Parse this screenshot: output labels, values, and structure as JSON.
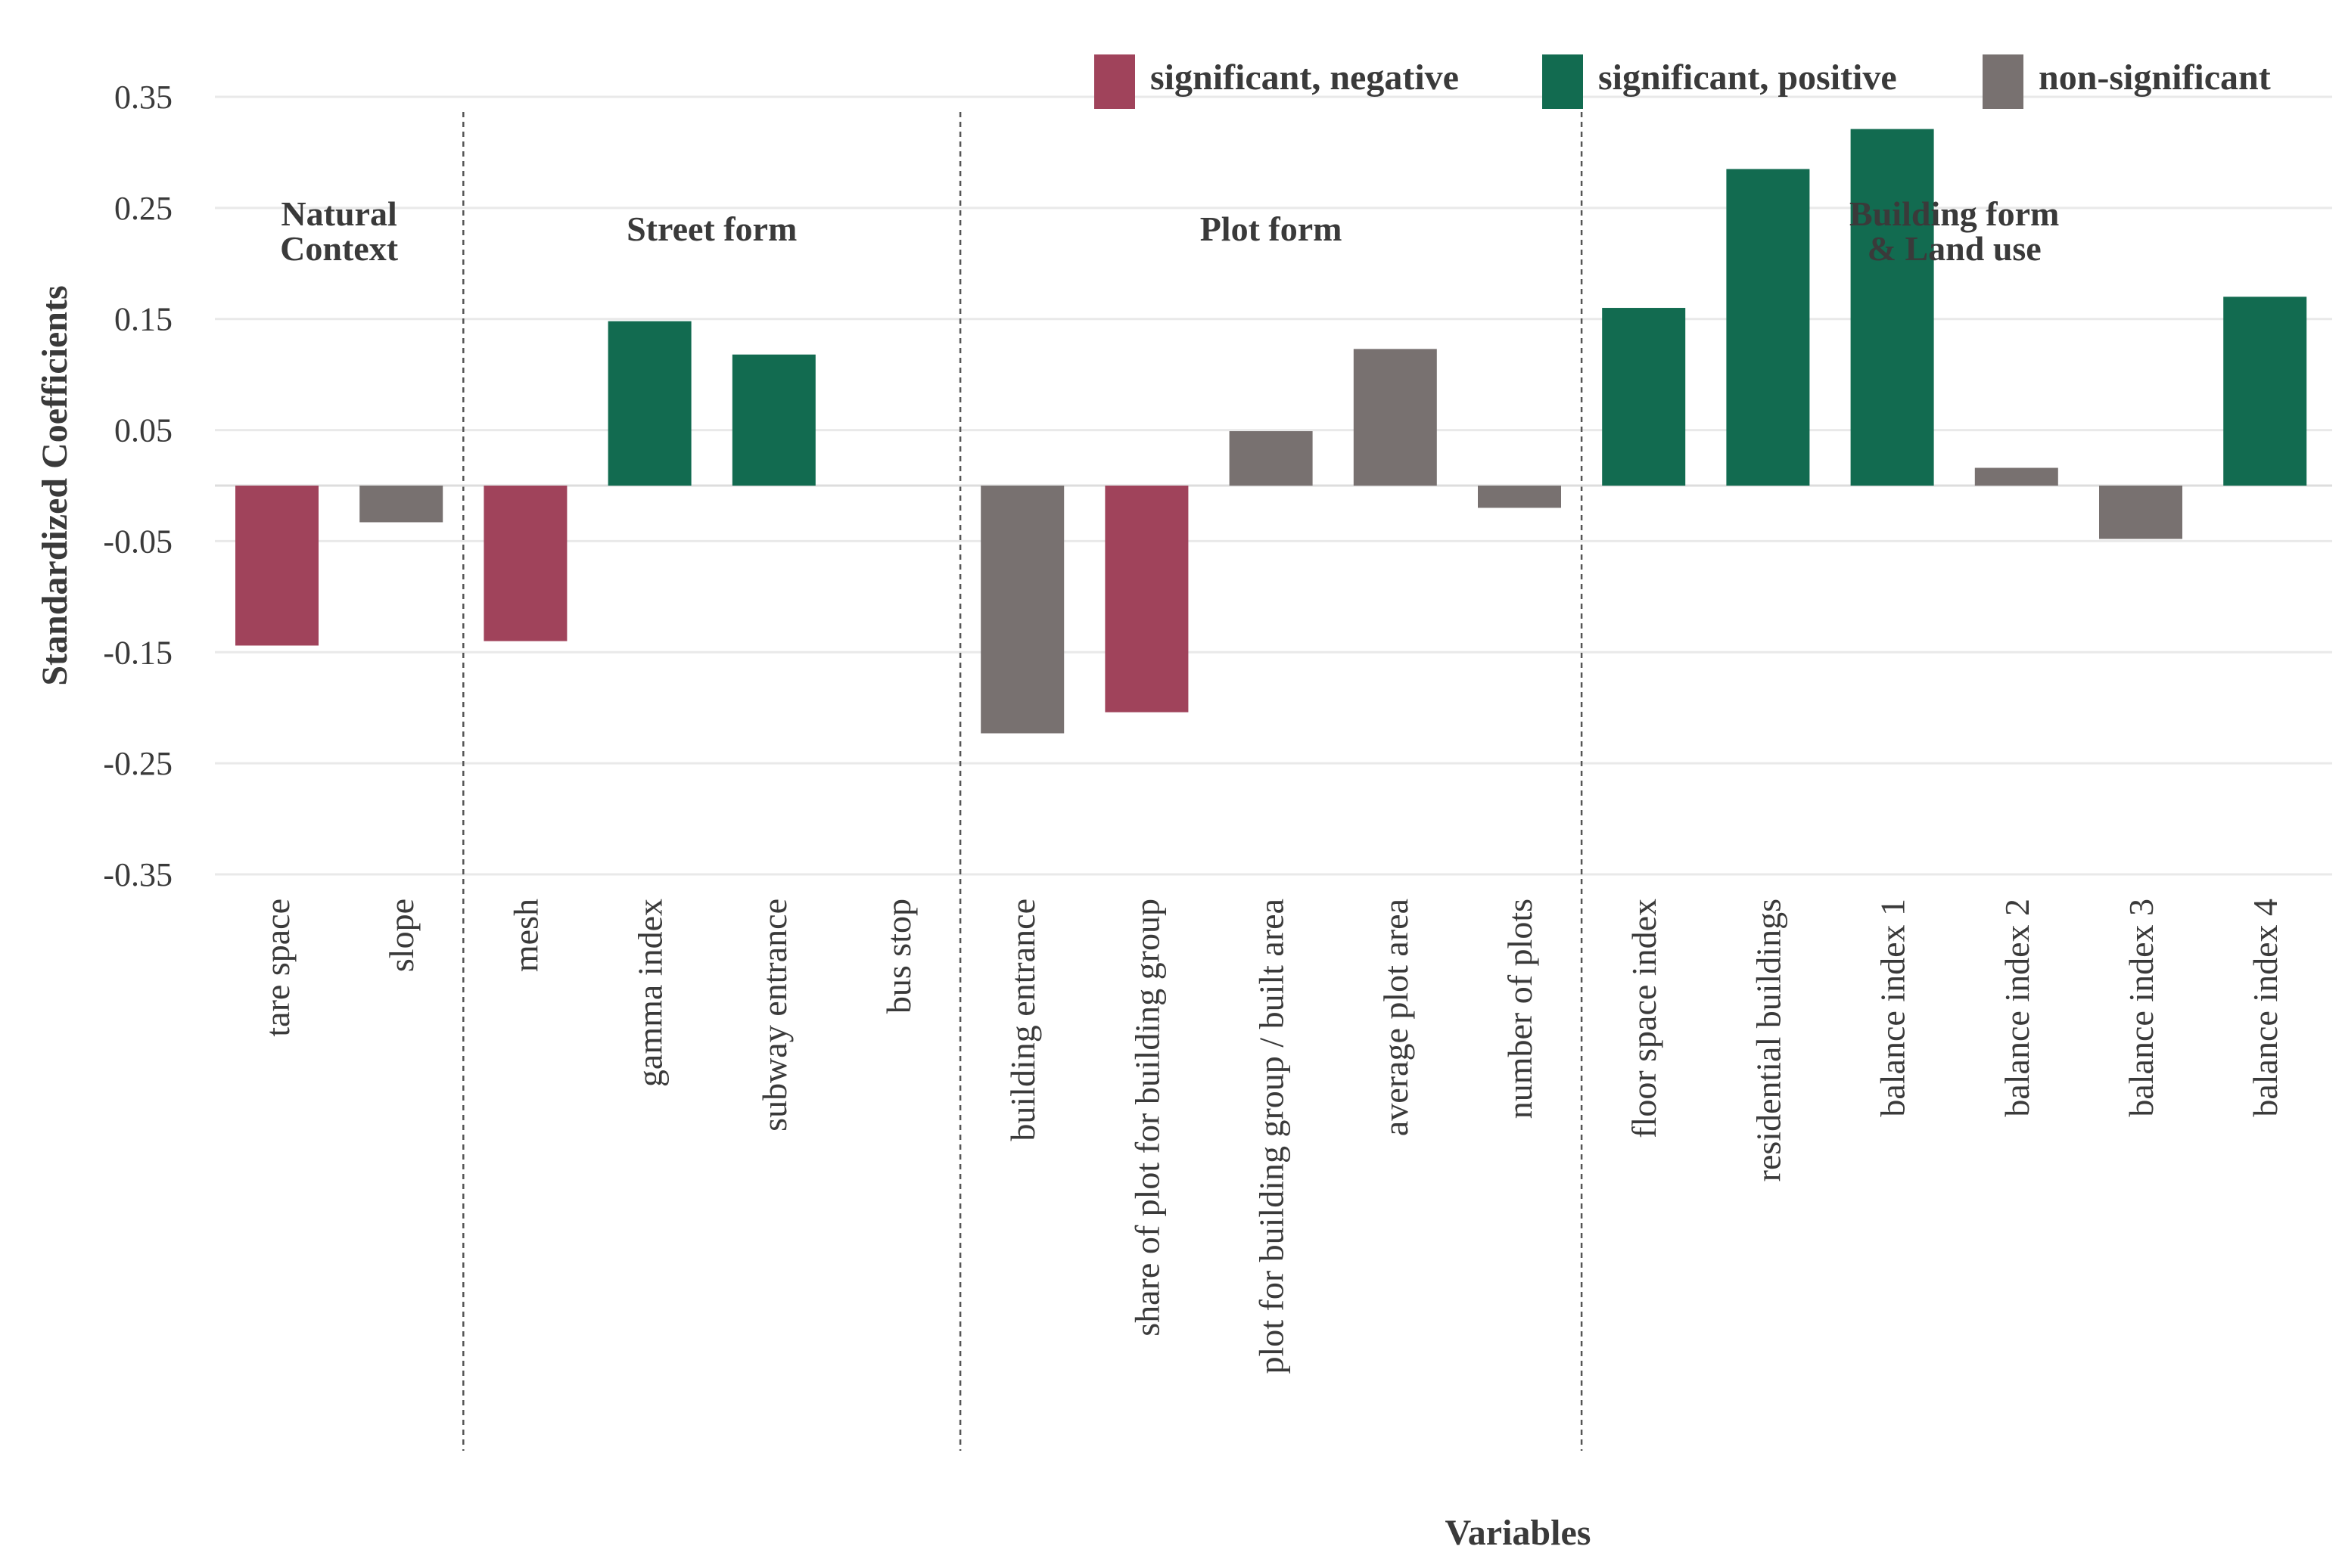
{
  "chart_data": {
    "type": "bar",
    "xlabel": "Variables",
    "ylabel": "Standardized Coefficients",
    "ylim": [
      -0.35,
      0.35
    ],
    "yticks": [
      0.35,
      0.25,
      0.15,
      0.05,
      -0.05,
      -0.15,
      -0.25,
      -0.35
    ],
    "ytick_labels": [
      "0.35",
      "0.25",
      "0.15",
      "0.05",
      "-0.05",
      "-0.15",
      "-0.25",
      "-0.35"
    ],
    "grid": true,
    "legend_position": "top-right",
    "legend": [
      {
        "key": "neg",
        "label": "significant, negative",
        "color": "#a0435b"
      },
      {
        "key": "pos",
        "label": "significant, positive",
        "color": "#126b50"
      },
      {
        "key": "ns",
        "label": "non-significant",
        "color": "#787170"
      }
    ],
    "groups": [
      {
        "lines": [
          "Natural",
          "Context"
        ],
        "categories": [
          "tare space",
          "slope"
        ]
      },
      {
        "lines": [
          "Street form"
        ],
        "categories": [
          "mesh",
          "gamma index",
          "subway entrance",
          "bus stop"
        ]
      },
      {
        "lines": [
          "Plot form"
        ],
        "categories": [
          "building entrance",
          "share of plot for building group",
          "plot for building group / built area",
          "average plot area",
          "number of plots"
        ]
      },
      {
        "lines": [
          "Building form",
          "& Land use"
        ],
        "categories": [
          "floor space index",
          "residential buildings",
          "balance index 1",
          "balance index 2",
          "balance index 3",
          "balance index 4"
        ]
      }
    ],
    "categories": [
      "tare space",
      "slope",
      "mesh",
      "gamma index",
      "subway entrance",
      "bus stop",
      "building entrance",
      "share of plot for building group",
      "plot for building group / built area",
      "average plot area",
      "number of plots",
      "floor space index",
      "residential buildings",
      "balance index 1",
      "balance index 2",
      "balance index 3",
      "balance index 4"
    ],
    "values": [
      -0.144,
      -0.033,
      -0.14,
      0.148,
      0.118,
      null,
      -0.223,
      -0.204,
      0.049,
      0.123,
      -0.02,
      0.16,
      0.285,
      0.321,
      0.016,
      -0.048,
      0.17
    ],
    "significance": [
      "neg",
      "ns",
      "neg",
      "pos",
      "pos",
      null,
      "ns",
      "neg",
      "ns",
      "ns",
      "ns",
      "pos",
      "pos",
      "pos",
      "ns",
      "ns",
      "pos"
    ]
  }
}
